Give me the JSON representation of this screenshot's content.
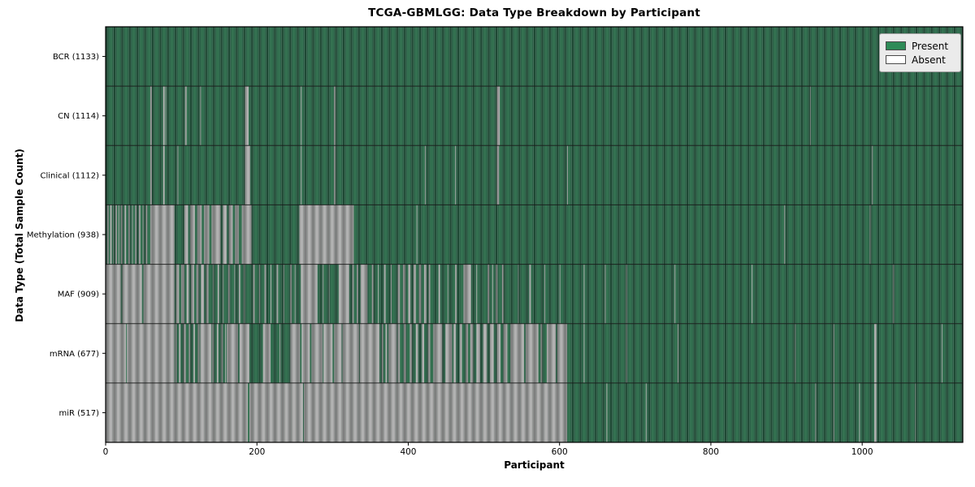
{
  "chart_data": {
    "type": "heatmap",
    "title": "TCGA-GBMLGG: Data Type Breakdown by Participant",
    "xlabel": "Participant",
    "ylabel": "Data Type (Total Sample Count)",
    "x_range": [
      0,
      1133
    ],
    "x_ticks": [
      0,
      200,
      400,
      600,
      800,
      1000
    ],
    "grid": false,
    "legend": {
      "position": "upper right",
      "entries": [
        {
          "label": "Present",
          "color": "#2e8b57"
        },
        {
          "label": "Absent",
          "color": "#ffffff"
        }
      ]
    },
    "rows": [
      {
        "name": "BCR",
        "label": "BCR (1133)",
        "total": 1133,
        "absent_runs": []
      },
      {
        "name": "CN",
        "label": "CN (1114)",
        "total": 1114,
        "absent_runs": [
          [
            59,
            61
          ],
          [
            76,
            78
          ],
          [
            79,
            80
          ],
          [
            105,
            107
          ],
          [
            125,
            126
          ],
          [
            184,
            189
          ],
          [
            258,
            259
          ],
          [
            302,
            304
          ],
          [
            517,
            521
          ],
          [
            931,
            932
          ]
        ]
      },
      {
        "name": "Clinical",
        "label": "Clinical (1112)",
        "total": 1112,
        "absent_runs": [
          [
            59,
            61
          ],
          [
            76,
            78
          ],
          [
            95,
            96
          ],
          [
            184,
            191
          ],
          [
            258,
            259
          ],
          [
            302,
            304
          ],
          [
            422,
            423
          ],
          [
            462,
            463
          ],
          [
            517,
            520
          ],
          [
            610,
            611
          ],
          [
            1013,
            1014
          ]
        ]
      },
      {
        "name": "Methylation",
        "label": "Methylation (938)",
        "total": 938,
        "absent_runs": [
          [
            2,
            4
          ],
          [
            6,
            8
          ],
          [
            10,
            11
          ],
          [
            13,
            15
          ],
          [
            17,
            18
          ],
          [
            20,
            22
          ],
          [
            25,
            27
          ],
          [
            30,
            32
          ],
          [
            35,
            36
          ],
          [
            39,
            41
          ],
          [
            44,
            46
          ],
          [
            49,
            50
          ],
          [
            53,
            55
          ],
          [
            59,
            91
          ],
          [
            104,
            109
          ],
          [
            112,
            118
          ],
          [
            121,
            127
          ],
          [
            130,
            137
          ],
          [
            140,
            152
          ],
          [
            155,
            160
          ],
          [
            163,
            168
          ],
          [
            171,
            176
          ],
          [
            180,
            193
          ],
          [
            256,
            328
          ],
          [
            411,
            412
          ],
          [
            897,
            898
          ],
          [
            1010,
            1011
          ]
        ]
      },
      {
        "name": "MAF",
        "label": "MAF (909)",
        "total": 909,
        "absent_runs": [
          [
            0,
            20
          ],
          [
            22,
            48
          ],
          [
            50,
            91
          ],
          [
            93,
            97
          ],
          [
            100,
            104
          ],
          [
            107,
            110
          ],
          [
            113,
            117
          ],
          [
            120,
            123
          ],
          [
            126,
            130
          ],
          [
            133,
            136
          ],
          [
            142,
            143
          ],
          [
            148,
            150
          ],
          [
            155,
            156
          ],
          [
            162,
            164
          ],
          [
            170,
            171
          ],
          [
            176,
            178
          ],
          [
            183,
            184
          ],
          [
            195,
            197
          ],
          [
            203,
            204
          ],
          [
            210,
            212
          ],
          [
            218,
            219
          ],
          [
            226,
            228
          ],
          [
            235,
            236
          ],
          [
            244,
            246
          ],
          [
            250,
            251
          ],
          [
            258,
            280
          ],
          [
            287,
            288
          ],
          [
            295,
            296
          ],
          [
            308,
            322
          ],
          [
            326,
            328
          ],
          [
            332,
            334
          ],
          [
            337,
            346
          ],
          [
            352,
            354
          ],
          [
            360,
            361
          ],
          [
            368,
            370
          ],
          [
            377,
            378
          ],
          [
            386,
            389
          ],
          [
            393,
            396
          ],
          [
            400,
            403
          ],
          [
            407,
            410
          ],
          [
            414,
            417
          ],
          [
            421,
            424
          ],
          [
            427,
            429
          ],
          [
            440,
            442
          ],
          [
            452,
            453
          ],
          [
            462,
            464
          ],
          [
            473,
            483
          ],
          [
            490,
            491
          ],
          [
            505,
            507
          ],
          [
            511,
            512
          ],
          [
            516,
            518
          ],
          [
            524,
            526
          ],
          [
            545,
            546
          ],
          [
            560,
            562
          ],
          [
            580,
            581
          ],
          [
            600,
            601
          ],
          [
            632,
            633
          ],
          [
            660,
            661
          ],
          [
            688,
            689
          ],
          [
            752,
            753
          ],
          [
            854,
            855
          ],
          [
            1041,
            1042
          ]
        ]
      },
      {
        "name": "mRNA",
        "label": "mRNA (677)",
        "total": 677,
        "absent_runs": [
          [
            0,
            27
          ],
          [
            28,
            91
          ],
          [
            92,
            94
          ],
          [
            97,
            99
          ],
          [
            103,
            106
          ],
          [
            110,
            112
          ],
          [
            116,
            118
          ],
          [
            122,
            124
          ],
          [
            125,
            140
          ],
          [
            141,
            143
          ],
          [
            147,
            149
          ],
          [
            153,
            155
          ],
          [
            158,
            159
          ],
          [
            160,
            175
          ],
          [
            177,
            190
          ],
          [
            208,
            218
          ],
          [
            230,
            231
          ],
          [
            244,
            257
          ],
          [
            259,
            270
          ],
          [
            272,
            287
          ],
          [
            288,
            300
          ],
          [
            302,
            312
          ],
          [
            313,
            335
          ],
          [
            336,
            362
          ],
          [
            365,
            367
          ],
          [
            370,
            372
          ],
          [
            374,
            385
          ],
          [
            386,
            389
          ],
          [
            394,
            397
          ],
          [
            402,
            405
          ],
          [
            410,
            413
          ],
          [
            418,
            421
          ],
          [
            426,
            429
          ],
          [
            433,
            445
          ],
          [
            449,
            458
          ],
          [
            460,
            463
          ],
          [
            468,
            471
          ],
          [
            476,
            479
          ],
          [
            482,
            486
          ],
          [
            490,
            495
          ],
          [
            499,
            504
          ],
          [
            508,
            513
          ],
          [
            517,
            522
          ],
          [
            526,
            531
          ],
          [
            535,
            553
          ],
          [
            555,
            572
          ],
          [
            575,
            577
          ],
          [
            583,
            595
          ],
          [
            597,
            610
          ],
          [
            632,
            633
          ],
          [
            688,
            689
          ],
          [
            756,
            757
          ],
          [
            911,
            912
          ],
          [
            962,
            963
          ],
          [
            1016,
            1019
          ],
          [
            1105,
            1106
          ]
        ]
      },
      {
        "name": "miR",
        "label": "miR (517)",
        "total": 517,
        "absent_runs": [
          [
            0,
            188
          ],
          [
            190,
            261
          ],
          [
            262,
            610
          ],
          [
            662,
            663
          ],
          [
            714,
            715
          ],
          [
            938,
            939
          ],
          [
            962,
            963
          ],
          [
            996,
            997
          ],
          [
            1016,
            1019
          ],
          [
            1070,
            1071
          ]
        ]
      }
    ]
  },
  "colors": {
    "present_light": "#32704f",
    "present_mid": "#295f45",
    "present_dark": "#1e4733",
    "absent_light": "#b2b2b2",
    "absent_mid": "#969696",
    "absent_dark": "#7f7f7f",
    "separator": "#141414",
    "spine": "#000000",
    "legend_bg": "#ebebeb",
    "legend_border": "#9e9e9e"
  }
}
